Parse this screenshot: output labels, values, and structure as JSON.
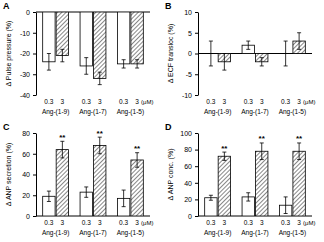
{
  "chart_data": [
    {
      "type": "bar",
      "title": "A",
      "ylabel": "Δ Pulse pressure (%)",
      "annotation": "(μM)",
      "categories": [
        "Ang-(1-9)",
        "Ang-(1-7)",
        "Ang-(1-5)"
      ],
      "series": [
        {
          "name": "0.3",
          "color": "#ffffff",
          "values": [
            -24,
            -26,
            -25
          ],
          "errors": [
            4,
            4,
            2
          ]
        },
        {
          "name": "3",
          "color": "#555555",
          "values": [
            -21,
            -32,
            -25
          ],
          "errors": [
            3,
            3,
            2
          ]
        }
      ],
      "ylim": [
        -40,
        0
      ],
      "yticks": [
        -40,
        -30,
        -20,
        -10,
        0
      ]
    },
    {
      "type": "bar",
      "title": "B",
      "ylabel": "Δ ECF transloc (%)",
      "annotation": "(μM)",
      "categories": [
        "Ang-(1-9)",
        "Ang-(1-7)",
        "Ang-(1-5)"
      ],
      "series": [
        {
          "name": "0.3",
          "color": "#ffffff",
          "values": [
            0,
            2,
            0
          ],
          "errors": [
            3,
            1,
            3
          ]
        },
        {
          "name": "3",
          "color": "#555555",
          "values": [
            -2,
            -2,
            3
          ],
          "errors": [
            2,
            1,
            2
          ]
        }
      ],
      "ylim": [
        -10,
        10
      ],
      "yticks": [
        -10,
        -5,
        0,
        5,
        10
      ]
    },
    {
      "type": "bar",
      "title": "C",
      "ylabel": "Δ ANP secretion (%)",
      "annotation": "(μM)",
      "categories": [
        "Ang-(1-9)",
        "Ang-(1-7)",
        "Ang-(1-5)"
      ],
      "series": [
        {
          "name": "0.3",
          "color": "#ffffff",
          "values": [
            19,
            23,
            17
          ],
          "errors": [
            5,
            5,
            8
          ]
        },
        {
          "name": "3",
          "color": "#555555",
          "values": [
            64,
            68,
            54
          ],
          "errors": [
            8,
            8,
            7
          ],
          "significance": [
            "**",
            "**",
            "**"
          ]
        }
      ],
      "ylim": [
        0,
        80
      ],
      "yticks": [
        0,
        20,
        40,
        60,
        80
      ]
    },
    {
      "type": "bar",
      "title": "D",
      "ylabel": "Δ ANP conc. (%)",
      "annotation": "(μM)",
      "categories": [
        "Ang-(1-9)",
        "Ang-(1-7)",
        "Ang-(1-5)"
      ],
      "series": [
        {
          "name": "0.3",
          "color": "#ffffff",
          "values": [
            22,
            23,
            13
          ],
          "errors": [
            3,
            5,
            10
          ]
        },
        {
          "name": "3",
          "color": "#555555",
          "values": [
            72,
            78,
            78
          ],
          "errors": [
            5,
            10,
            10
          ],
          "significance": [
            "**",
            "**",
            "**"
          ]
        }
      ],
      "ylim": [
        0,
        100
      ],
      "yticks": [
        0,
        20,
        40,
        60,
        80,
        100
      ]
    }
  ]
}
